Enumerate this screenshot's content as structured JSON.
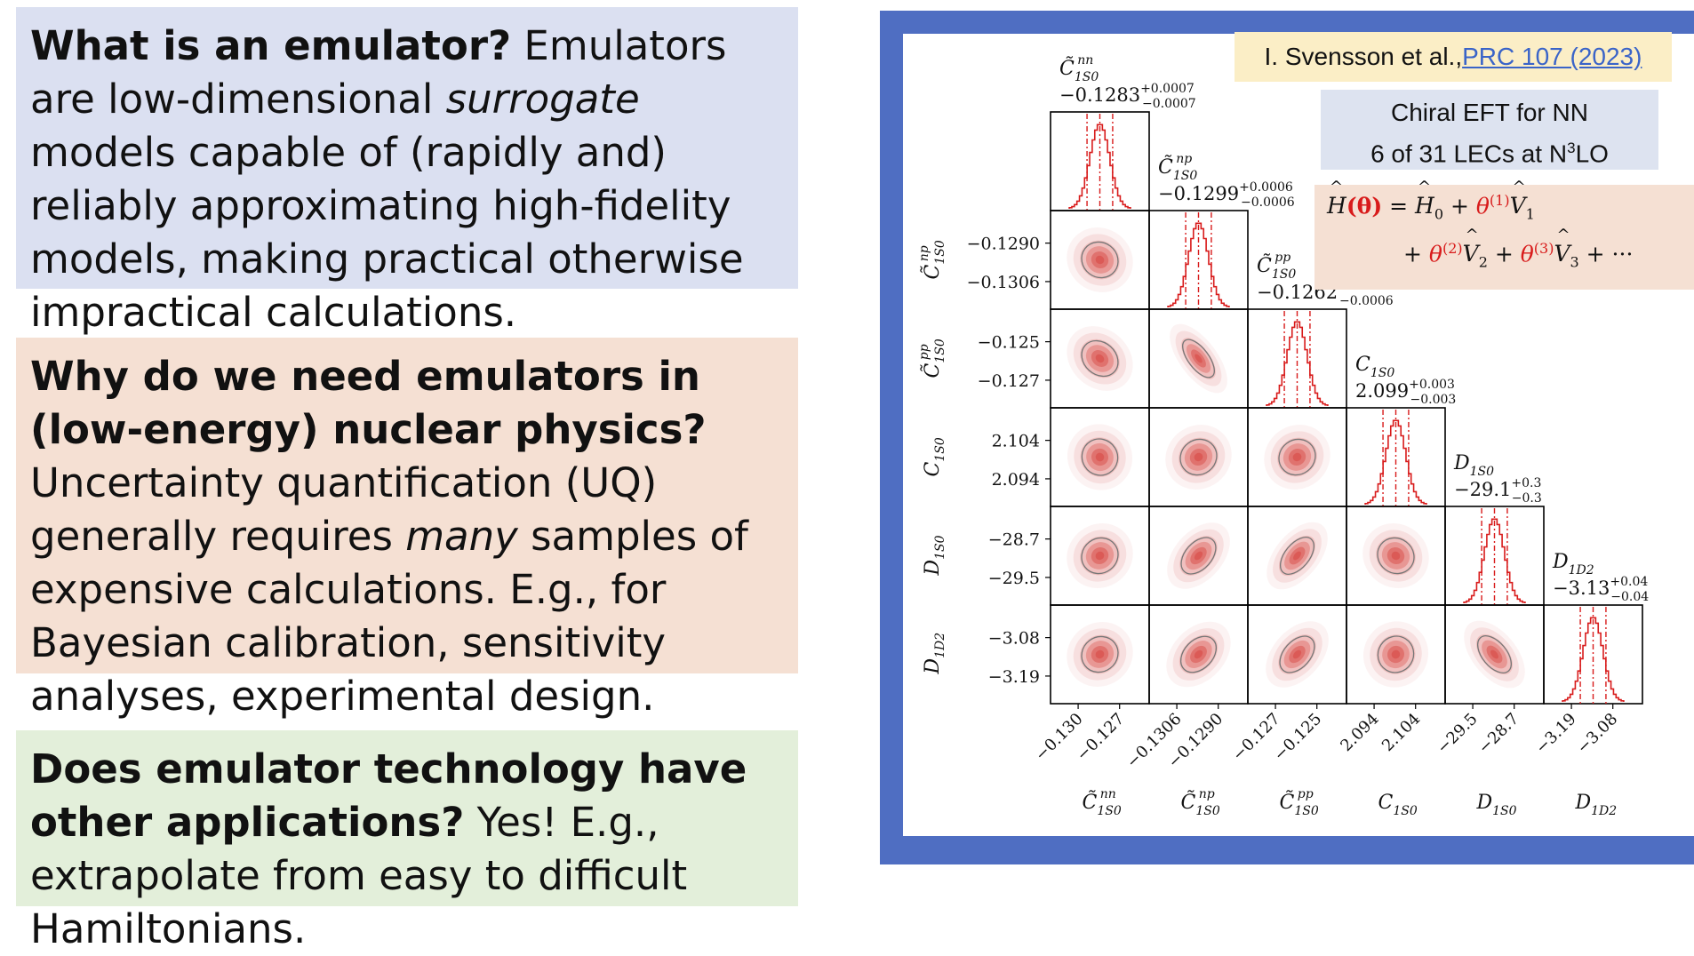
{
  "boxes": {
    "box1": {
      "heading": "What is an emulator?",
      "text1": " Emulators are low-dimensional ",
      "em1": "surrogate",
      "text2": " models capable of (rapidly and) reliably approximating high-fidelity models, making practical otherwise impractical calculations."
    },
    "box2": {
      "heading": "Why do we need emulators in (low-energy) nuclear  physics?",
      "text1": " Uncertainty quantification (UQ) generally requires ",
      "em1": "many",
      "text2": " samples of expensive calculations. E.g., for Bayesian calibration, sensitivity analyses, experimental design."
    },
    "box3": {
      "heading": "Does emulator technology have other applications?",
      "text1": " Yes! E.g., extrapolate from easy to difficult Hamiltonians."
    }
  },
  "citation": {
    "author": "I. Svensson et al.,",
    "link": "PRC 107 (2023)"
  },
  "eft": {
    "line1": "Chiral EFT for NN",
    "line2_pre": "6 of 31 LECs at N",
    "line2_sup": "3",
    "line2_post": "LO"
  },
  "hamiltonian": {
    "lhs": "H",
    "theta": "(θ)",
    "eq": " = ",
    "h0": "H",
    "h0sub": "0",
    "plus": " + ",
    "t1": "θ",
    "t1sup": "(1)",
    "v": "V",
    "v1sub": "1",
    "t2sup": "(2)",
    "v2sub": "2",
    "t3sup": "(3)",
    "v3sub": "3",
    "dots": " + ···"
  },
  "chart_data": {
    "type": "corner",
    "params": [
      {
        "sym": "C̃",
        "sub": "1S0",
        "sup": "nn",
        "median": "−0.1283",
        "plus": "+0.0007",
        "minus": "−0.0007",
        "ticks": [
          "−0.130",
          "−0.127"
        ],
        "axis_label_sub": "1S0"
      },
      {
        "sym": "C̃",
        "sub": "1S0",
        "sup": "np",
        "median": "−0.1299",
        "plus": "+0.0006",
        "minus": "−0.0006",
        "ticks": [
          "−0.1306",
          "−0.1290"
        ]
      },
      {
        "sym": "C̃",
        "sub": "1S0",
        "sup": "pp",
        "median": "−0.1262",
        "plus": "+0.0006",
        "minus": "−0.0006",
        "ticks": [
          "−0.127",
          "−0.125"
        ]
      },
      {
        "sym": "C",
        "sub": "1S0",
        "sup": "",
        "median": "2.099",
        "plus": "+0.003",
        "minus": "−0.003",
        "ticks": [
          "2.094",
          "2.104"
        ]
      },
      {
        "sym": "D",
        "sub": "1S0",
        "sup": "",
        "median": "−29.1",
        "plus": "+0.3",
        "minus": "−0.3",
        "ticks": [
          "−29.5",
          "−28.7"
        ]
      },
      {
        "sym": "D",
        "sub": "1D2",
        "sup": "",
        "median": "−3.13",
        "plus": "+0.04",
        "minus": "−0.04",
        "ticks": [
          "−3.19",
          "−3.08"
        ]
      }
    ],
    "y_ticks": [
      [],
      [
        "−0.1290",
        "−0.1306"
      ],
      [
        "−0.125",
        "−0.127"
      ],
      [
        "2.104",
        "2.094"
      ],
      [
        "−28.7",
        "−29.5"
      ],
      [
        "−3.08",
        "−3.19"
      ]
    ],
    "correlations": {
      "1-0": 0.6,
      "2-0": 0.7,
      "2-1": 0.97,
      "3-0": -0.5,
      "3-1": -0.6,
      "3-2": -0.6,
      "4-0": -0.6,
      "4-1": -0.85,
      "4-2": -0.9,
      "4-3": 0.6,
      "5-0": -0.6,
      "5-1": -0.8,
      "5-2": -0.85,
      "5-3": 0.5,
      "5-4": 0.9
    },
    "colors": {
      "hist": "#d81b1b",
      "contour": "#777777",
      "fill": "#d9534f"
    }
  }
}
